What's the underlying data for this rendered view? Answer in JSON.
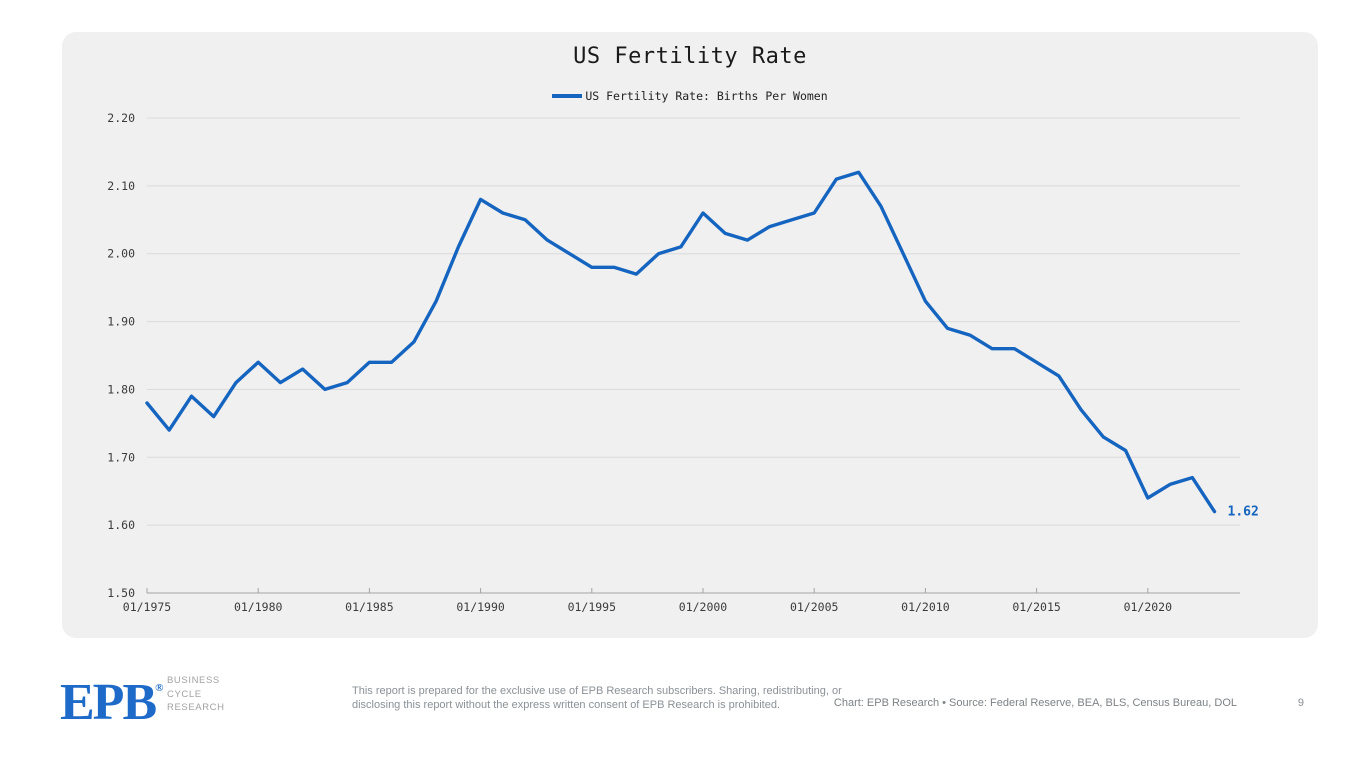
{
  "header": {
    "title": "US Fertility Rate"
  },
  "legend": {
    "label": "US Fertility Rate: Births Per Women"
  },
  "chart_data": {
    "type": "line",
    "title": "US Fertility Rate",
    "x_years": [
      1975,
      1976,
      1977,
      1978,
      1979,
      1980,
      1981,
      1982,
      1983,
      1984,
      1985,
      1986,
      1987,
      1988,
      1989,
      1990,
      1991,
      1992,
      1993,
      1994,
      1995,
      1996,
      1997,
      1998,
      1999,
      2000,
      2001,
      2002,
      2003,
      2004,
      2005,
      2006,
      2007,
      2008,
      2009,
      2010,
      2011,
      2012,
      2013,
      2014,
      2015,
      2016,
      2017,
      2018,
      2019,
      2020,
      2021,
      2022,
      2023
    ],
    "series": [
      {
        "name": "US Fertility Rate: Births Per Women",
        "values": [
          1.78,
          1.74,
          1.79,
          1.76,
          1.81,
          1.84,
          1.81,
          1.83,
          1.8,
          1.81,
          1.84,
          1.84,
          1.87,
          1.93,
          2.01,
          2.08,
          2.06,
          2.05,
          2.02,
          2.0,
          1.98,
          1.98,
          1.97,
          2.0,
          2.01,
          2.06,
          2.03,
          2.02,
          2.04,
          2.05,
          2.06,
          2.11,
          2.12,
          2.07,
          2.0,
          1.93,
          1.89,
          1.88,
          1.86,
          1.86,
          1.84,
          1.82,
          1.77,
          1.73,
          1.71,
          1.64,
          1.66,
          1.67,
          1.62
        ]
      }
    ],
    "x_tick_labels": [
      "01/1975",
      "01/1980",
      "01/1985",
      "01/1990",
      "01/1995",
      "01/2000",
      "01/2005",
      "01/2010",
      "01/2015",
      "01/2020"
    ],
    "y_tick_labels": [
      "2.20",
      "2.10",
      "2.00",
      "1.90",
      "1.80",
      "1.70",
      "1.60",
      "1.50"
    ],
    "ylim": [
      1.5,
      2.2
    ],
    "grid": true,
    "legend_position": "top",
    "line_color": "#1565c0",
    "end_label": "1.62"
  },
  "footer": {
    "logo_text": "EPB",
    "logo_registered": "®",
    "tagline_line1": "BUSINESS",
    "tagline_line2": "CYCLE",
    "tagline_line3": "RESEARCH",
    "disclaimer_line1": "This report is prepared for the exclusive use of EPB Research subscribers. Sharing, redistributing, or",
    "disclaimer_line2": "disclosing this report without the express written consent of EPB Research is prohibited.",
    "attribution": "Chart: EPB Research  •  Source: Federal Reserve, BEA, BLS, Census Bureau, DOL",
    "page_number": "9"
  }
}
